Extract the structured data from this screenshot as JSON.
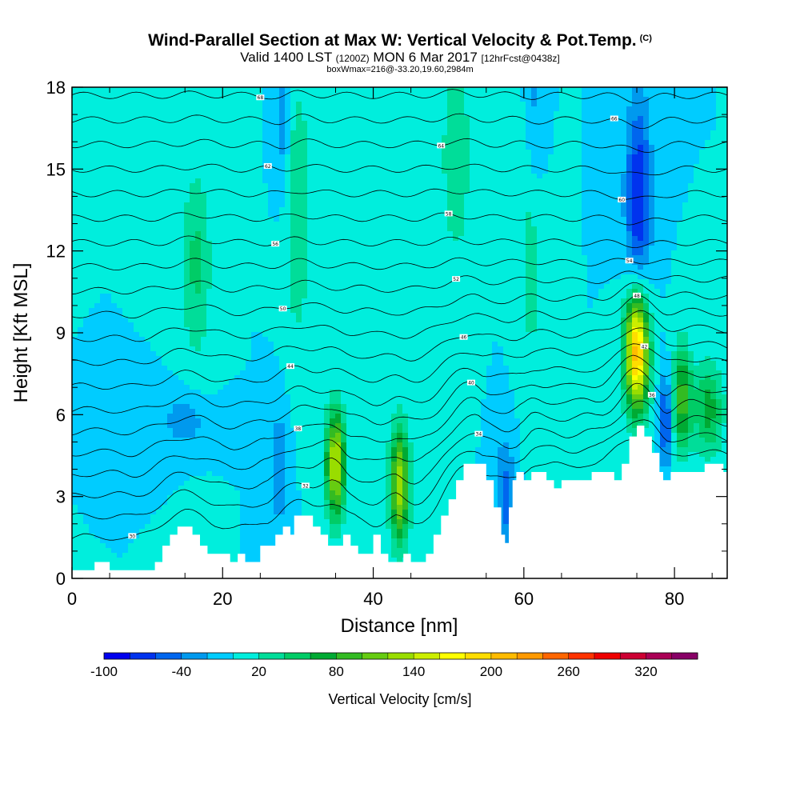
{
  "header": {
    "title": "Wind-Parallel Section at Max W: Vertical Velocity & Pot.Temp.",
    "copyright": "(C)",
    "valid_prefix": "Valid 1400 LST",
    "valid_utc": "(1200Z)",
    "valid_date": "MON 6 Mar 2017",
    "forecast": "[12hrFcst@0438z]",
    "box_info": "boxWmax=216@-33.20,19.60,2984m"
  },
  "chart_data": {
    "type": "heatmap",
    "title": "Wind-Parallel Section at Max W: Vertical Velocity & Pot.Temp.",
    "xlabel": "Distance [nm]",
    "ylabel": "Height [Kft MSL]",
    "xlim": [
      0,
      87
    ],
    "ylim": [
      0,
      18
    ],
    "x_ticks": [
      0,
      20,
      40,
      60,
      80
    ],
    "y_ticks": [
      0,
      3,
      6,
      9,
      12,
      15,
      18
    ],
    "colorbar": {
      "title": "Vertical Velocity [cm/s]",
      "min": -100,
      "max": 340,
      "step": 20,
      "tick_values": [
        -100,
        -40,
        20,
        80,
        140,
        200,
        260,
        320
      ],
      "tick_labels": [
        "-100",
        "-40",
        "20",
        "80",
        "140",
        "200",
        "260",
        "320"
      ],
      "colors": [
        "#0000ee",
        "#0033ee",
        "#0066ee",
        "#0099ee",
        "#00ccff",
        "#00eedd",
        "#00dd99",
        "#00cc66",
        "#00aa33",
        "#33bb22",
        "#66cc11",
        "#99dd00",
        "#ccee00",
        "#ffff00",
        "#ffdd00",
        "#ffbb00",
        "#ff9900",
        "#ff6600",
        "#ff3300",
        "#ee0000",
        "#cc0033",
        "#aa0055",
        "#880066"
      ]
    },
    "background_velocity": 0,
    "updrafts": [
      {
        "x": 35.0,
        "z": 4.2,
        "sx": 0.9,
        "sz": 1.4,
        "w": 145
      },
      {
        "x": 43.5,
        "z": 3.4,
        "sx": 0.9,
        "sz": 1.5,
        "w": 135
      },
      {
        "x": 75.0,
        "z": 8.3,
        "sx": 1.1,
        "sz": 1.5,
        "w": 216
      },
      {
        "x": 81.0,
        "z": 6.6,
        "sx": 0.9,
        "sz": 1.4,
        "w": 90
      },
      {
        "x": 84.5,
        "z": 6.2,
        "sx": 1.4,
        "sz": 1.2,
        "w": 70
      },
      {
        "x": 16.5,
        "z": 11.5,
        "sx": 1.4,
        "sz": 2.5,
        "w": 45
      },
      {
        "x": 30.0,
        "z": 13.5,
        "sx": 1.2,
        "sz": 3.5,
        "w": 40
      },
      {
        "x": 51.0,
        "z": 15.5,
        "sx": 1.5,
        "sz": 3.0,
        "w": 35
      },
      {
        "x": 61.0,
        "z": 12.0,
        "sx": 1.2,
        "sz": 3.5,
        "w": 30
      }
    ],
    "downdrafts": [
      {
        "x": 75.2,
        "z": 14.0,
        "sx": 1.2,
        "sz": 2.5,
        "w": -80
      },
      {
        "x": 78.8,
        "z": 5.8,
        "sx": 0.6,
        "sz": 1.2,
        "w": -70
      },
      {
        "x": 57.5,
        "z": 3.0,
        "sx": 0.9,
        "sz": 1.5,
        "w": -50
      },
      {
        "x": 27.5,
        "z": 4.0,
        "sx": 0.9,
        "sz": 1.5,
        "w": -40
      },
      {
        "x": 15.0,
        "z": 5.8,
        "sx": 2.0,
        "sz": 0.7,
        "w": -35
      },
      {
        "x": 28.0,
        "z": 17.0,
        "sx": 0.7,
        "sz": 2.0,
        "w": -35
      },
      {
        "x": 61.5,
        "z": 17.0,
        "sx": 0.9,
        "sz": 2.5,
        "w": -30
      }
    ],
    "terrain": [
      [
        0,
        0.3
      ],
      [
        3,
        0.3
      ],
      [
        3,
        0.6
      ],
      [
        5,
        0.6
      ],
      [
        5,
        0.3
      ],
      [
        11,
        0.3
      ],
      [
        11,
        0.6
      ],
      [
        12,
        0.6
      ],
      [
        12,
        1.2
      ],
      [
        13,
        1.2
      ],
      [
        13,
        1.6
      ],
      [
        14,
        1.6
      ],
      [
        14,
        1.9
      ],
      [
        16,
        1.9
      ],
      [
        16,
        1.6
      ],
      [
        17,
        1.6
      ],
      [
        17,
        1.2
      ],
      [
        18,
        1.2
      ],
      [
        18,
        0.9
      ],
      [
        21,
        0.9
      ],
      [
        21,
        0.6
      ],
      [
        22,
        0.6
      ],
      [
        22,
        0.9
      ],
      [
        23,
        0.9
      ],
      [
        23,
        0.6
      ],
      [
        25,
        0.6
      ],
      [
        25,
        1.2
      ],
      [
        27,
        1.2
      ],
      [
        27,
        1.6
      ],
      [
        28,
        1.6
      ],
      [
        28,
        1.9
      ],
      [
        29,
        1.9
      ],
      [
        29,
        1.6
      ],
      [
        29.5,
        1.6
      ],
      [
        29.5,
        2.3
      ],
      [
        32,
        2.3
      ],
      [
        32,
        1.9
      ],
      [
        33,
        1.9
      ],
      [
        33,
        1.6
      ],
      [
        34,
        1.6
      ],
      [
        34,
        1.2
      ],
      [
        36,
        1.2
      ],
      [
        36,
        1.6
      ],
      [
        37,
        1.6
      ],
      [
        37,
        1.2
      ],
      [
        38,
        1.2
      ],
      [
        38,
        0.9
      ],
      [
        40,
        0.9
      ],
      [
        40,
        1.6
      ],
      [
        41,
        1.6
      ],
      [
        41,
        0.9
      ],
      [
        42,
        0.9
      ],
      [
        42,
        0.6
      ],
      [
        44,
        0.6
      ],
      [
        44,
        0.9
      ],
      [
        45,
        0.9
      ],
      [
        45,
        0.6
      ],
      [
        47,
        0.6
      ],
      [
        47,
        0.9
      ],
      [
        48,
        0.9
      ],
      [
        48,
        1.6
      ],
      [
        49,
        1.6
      ],
      [
        49,
        2.3
      ],
      [
        50,
        2.3
      ],
      [
        50,
        2.9
      ],
      [
        51,
        2.9
      ],
      [
        51,
        3.6
      ],
      [
        52,
        3.6
      ],
      [
        52,
        4.2
      ],
      [
        55,
        4.2
      ],
      [
        55,
        3.6
      ],
      [
        56,
        3.6
      ],
      [
        56,
        2.6
      ],
      [
        57,
        2.6
      ],
      [
        57,
        1.6
      ],
      [
        57.5,
        1.6
      ],
      [
        57.5,
        1.3
      ],
      [
        58,
        1.3
      ],
      [
        58,
        2.6
      ],
      [
        58.5,
        2.6
      ],
      [
        58.5,
        3.6
      ],
      [
        59,
        3.6
      ],
      [
        59,
        3.9
      ],
      [
        60,
        3.9
      ],
      [
        60,
        3.6
      ],
      [
        61,
        3.6
      ],
      [
        61,
        3.9
      ],
      [
        63,
        3.9
      ],
      [
        63,
        3.6
      ],
      [
        64,
        3.6
      ],
      [
        64,
        3.3
      ],
      [
        65,
        3.3
      ],
      [
        65,
        3.6
      ],
      [
        69,
        3.6
      ],
      [
        69,
        3.9
      ],
      [
        72,
        3.9
      ],
      [
        72,
        3.6
      ],
      [
        73,
        3.6
      ],
      [
        73,
        4.2
      ],
      [
        74,
        4.2
      ],
      [
        74,
        5.2
      ],
      [
        75,
        5.2
      ],
      [
        75,
        5.6
      ],
      [
        76,
        5.6
      ],
      [
        76,
        5.2
      ],
      [
        77,
        5.2
      ],
      [
        77,
        4.6
      ],
      [
        78,
        4.6
      ],
      [
        78,
        3.9
      ],
      [
        78.5,
        3.9
      ],
      [
        78.5,
        3.6
      ],
      [
        79.5,
        3.6
      ],
      [
        79.5,
        3.9
      ],
      [
        84,
        3.9
      ],
      [
        84,
        4.2
      ],
      [
        86.5,
        4.2
      ],
      [
        86.5,
        3.9
      ],
      [
        87,
        3.9
      ]
    ],
    "isentropes": {
      "label": "Pot.Temp. contours",
      "levels_kft": [
        1.2,
        2.0,
        2.8,
        3.6,
        4.4,
        5.2,
        6.0,
        6.9,
        7.8,
        8.7,
        9.6,
        10.5,
        11.4,
        12.3,
        13.2,
        14.1,
        15.0,
        15.9,
        16.8,
        17.7
      ],
      "contour_labels": [
        "30",
        "32",
        "34",
        "36",
        "38",
        "40",
        "42",
        "44",
        "46",
        "48",
        "50",
        "52",
        "54",
        "56",
        "58",
        "60",
        "62",
        "64",
        "66",
        "68"
      ]
    }
  }
}
